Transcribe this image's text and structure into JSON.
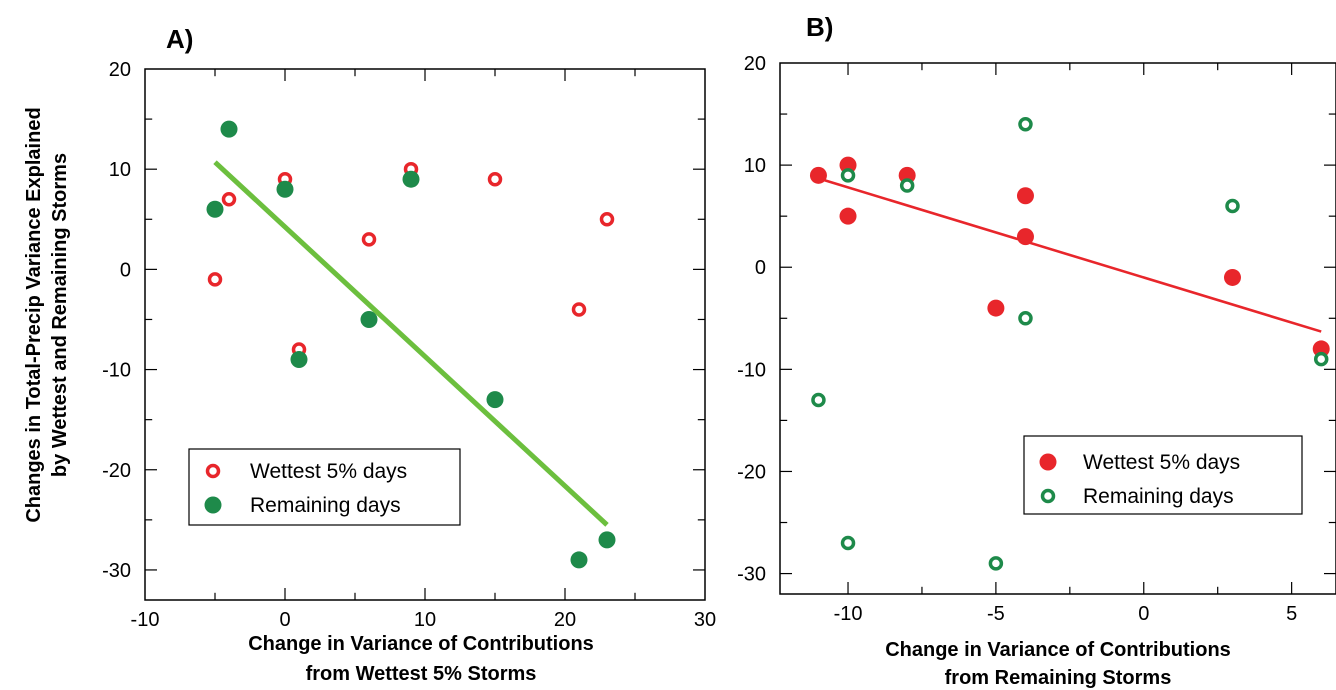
{
  "colors": {
    "red": "#e8262b",
    "green": "#1e8a4a",
    "fit_a": "#6cbf3e",
    "fit_b": "#e8262b",
    "axis": "#000000"
  },
  "shared": {
    "ylabel_line1": "Changes in Total-Precip Variance Explained",
    "ylabel_line2": "by Wettest and Remaining Storms"
  },
  "chart_data": [
    {
      "type": "scatter",
      "panel_label": "A)",
      "xlabel_line1": "Change in Variance of Contributions",
      "xlabel_line2": "from Wettest 5% Storms",
      "xlim": [
        -10,
        30
      ],
      "ylim": [
        -33,
        20
      ],
      "xticks": [
        -10,
        0,
        10,
        20,
        30
      ],
      "yticks": [
        -30,
        -20,
        -10,
        0,
        10,
        20
      ],
      "xtick_labels": [
        "-10",
        "0",
        "10",
        "20",
        "30"
      ],
      "ytick_labels": [
        "-30",
        "-20",
        "-10",
        "0",
        "10",
        "20"
      ],
      "legend_position": "lower-left",
      "series": [
        {
          "name": "Wettest 5% days",
          "marker": "open-circle",
          "color": "red",
          "points": [
            [
              -5,
              -1
            ],
            [
              -4,
              7
            ],
            [
              0,
              9
            ],
            [
              1,
              -8
            ],
            [
              6,
              3
            ],
            [
              9,
              10
            ],
            [
              15,
              9
            ],
            [
              21,
              -4
            ],
            [
              23,
              5
            ]
          ]
        },
        {
          "name": "Remaining days",
          "marker": "filled-circle",
          "color": "green",
          "points": [
            [
              -5,
              6
            ],
            [
              -4,
              14
            ],
            [
              0,
              8
            ],
            [
              1,
              -9
            ],
            [
              6,
              -5
            ],
            [
              9,
              9
            ],
            [
              15,
              -13
            ],
            [
              21,
              -29
            ],
            [
              23,
              -27
            ]
          ]
        }
      ],
      "fit_line": {
        "color": "fit_a",
        "x": [
          -5,
          23
        ],
        "y": [
          10.7,
          -25.5
        ]
      }
    },
    {
      "type": "scatter",
      "panel_label": "B)",
      "xlabel_line1": "Change in Variance of Contributions",
      "xlabel_line2": "from Remaining Storms",
      "xlim": [
        -12.3,
        6.5
      ],
      "ylim": [
        -32,
        20
      ],
      "xticks": [
        -10,
        -5,
        0,
        5
      ],
      "yticks": [
        -30,
        -20,
        -10,
        0,
        10,
        20
      ],
      "xtick_labels": [
        "-10",
        "-5",
        "0",
        "5"
      ],
      "ytick_labels": [
        "-30",
        "-20",
        "-10",
        "0",
        "10",
        "20"
      ],
      "legend_position": "lower-right",
      "series": [
        {
          "name": "Wettest 5% days",
          "marker": "filled-circle",
          "color": "red",
          "points": [
            [
              -11,
              9
            ],
            [
              -10,
              10
            ],
            [
              -10,
              5
            ],
            [
              -8,
              9
            ],
            [
              -5,
              -4
            ],
            [
              -4,
              7
            ],
            [
              -4,
              3
            ],
            [
              3,
              -1
            ],
            [
              6,
              -8
            ]
          ]
        },
        {
          "name": "Remaining days",
          "marker": "open-circle",
          "color": "green",
          "points": [
            [
              -11,
              -13
            ],
            [
              -10,
              9
            ],
            [
              -10,
              -27
            ],
            [
              -8,
              8
            ],
            [
              -5,
              -29
            ],
            [
              -4,
              14
            ],
            [
              -4,
              -5
            ],
            [
              3,
              6
            ],
            [
              6,
              -9
            ]
          ]
        }
      ],
      "fit_line": {
        "color": "fit_b",
        "x": [
          -11,
          6
        ],
        "y": [
          8.7,
          -6.3
        ]
      }
    }
  ]
}
